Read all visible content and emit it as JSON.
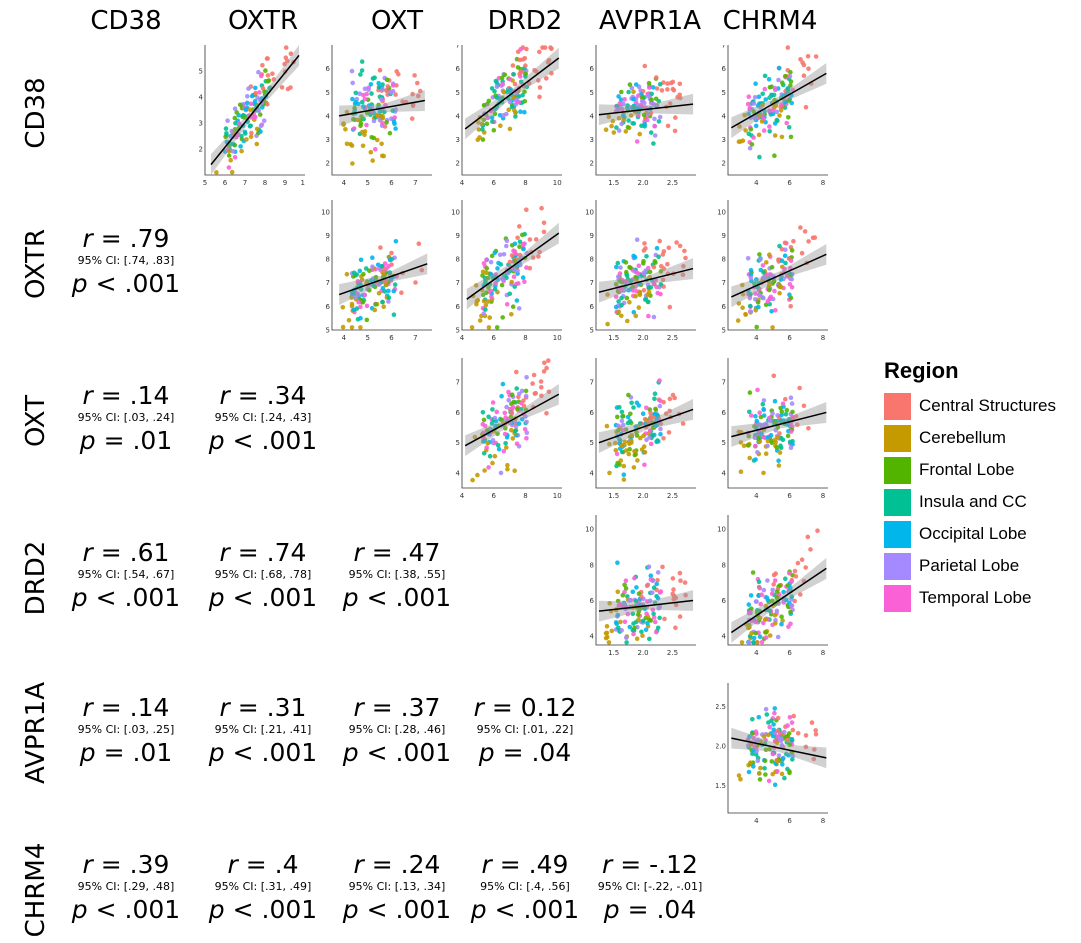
{
  "variables": [
    "CD38",
    "OXTR",
    "OXT",
    "DRD2",
    "AVPR1A",
    "CHRM4"
  ],
  "legend": {
    "title": "Region",
    "items": [
      {
        "label": "Central Structures",
        "color": "#F8766D"
      },
      {
        "label": "Cerebellum",
        "color": "#C49A00"
      },
      {
        "label": "Frontal Lobe",
        "color": "#53B400"
      },
      {
        "label": "Insula and CC",
        "color": "#00C094"
      },
      {
        "label": "Occipital Lobe",
        "color": "#00B6EB"
      },
      {
        "label": "Parietal Lobe",
        "color": "#A58AFF"
      },
      {
        "label": "Temporal Lobe",
        "color": "#FB61D7"
      }
    ]
  },
  "stats": [
    {
      "row": "OXTR",
      "col": "CD38",
      "r": ".79",
      "ci": "95% CI: [.74, .83]",
      "p": "< .001"
    },
    {
      "row": "OXT",
      "col": "CD38",
      "r": ".14",
      "ci": "95% CI: [.03, .24]",
      "p": "= .01"
    },
    {
      "row": "OXT",
      "col": "OXTR",
      "r": ".34",
      "ci": "95% CI: [.24, .43]",
      "p": "< .001"
    },
    {
      "row": "DRD2",
      "col": "CD38",
      "r": ".61",
      "ci": "95% CI: [.54, .67]",
      "p": "< .001"
    },
    {
      "row": "DRD2",
      "col": "OXTR",
      "r": ".74",
      "ci": "95% CI: [.68, .78]",
      "p": "< .001"
    },
    {
      "row": "DRD2",
      "col": "OXT",
      "r": ".47",
      "ci": "95% CI: [.38, .55]",
      "p": "< .001"
    },
    {
      "row": "AVPR1A",
      "col": "CD38",
      "r": ".14",
      "ci": "95% CI: [.03, .25]",
      "p": "= .01"
    },
    {
      "row": "AVPR1A",
      "col": "OXTR",
      "r": ".31",
      "ci": "95% CI: [.21, .41]",
      "p": "< .001"
    },
    {
      "row": "AVPR1A",
      "col": "OXT",
      "r": ".37",
      "ci": "95% CI: [.28, .46]",
      "p": "< .001"
    },
    {
      "row": "AVPR1A",
      "col": "DRD2",
      "r": "0.12",
      "ci": "95% CI: [.01, .22]",
      "p": "= .04"
    },
    {
      "row": "CHRM4",
      "col": "CD38",
      "r": ".39",
      "ci": "95% CI: [.29, .48]",
      "p": "< .001"
    },
    {
      "row": "CHRM4",
      "col": "OXTR",
      "r": ".4",
      "ci": "95% CI: [.31, .49]",
      "p": "< .001"
    },
    {
      "row": "CHRM4",
      "col": "OXT",
      "r": ".24",
      "ci": "95% CI: [.13, .34]",
      "p": "< .001"
    },
    {
      "row": "CHRM4",
      "col": "DRD2",
      "r": ".49",
      "ci": "95% CI: [.4, .56]",
      "p": "< .001"
    },
    {
      "row": "CHRM4",
      "col": "AVPR1A",
      "r": "-.12",
      "ci": "95% CI: [-.22, -.01]",
      "p": "= .04"
    }
  ],
  "chart_data": {
    "type": "scatter",
    "layout": "correlation-matrix",
    "panels": [
      {
        "row": "CD38",
        "col": "OXTR",
        "xlim": [
          5,
          10
        ],
        "ylim": [
          1,
          6
        ],
        "xticks": [
          "5",
          "6",
          "7",
          "8",
          "9",
          "10"
        ],
        "yticks": [
          "2",
          "3",
          "4",
          "5"
        ],
        "fit_line": [
          [
            5.3,
            1.4
          ],
          [
            9.7,
            5.6
          ]
        ]
      },
      {
        "row": "CD38",
        "col": "OXT",
        "xlim": [
          3.5,
          7.7
        ],
        "ylim": [
          1.5,
          7
        ],
        "xticks": [
          "4",
          "5",
          "6",
          "7"
        ],
        "yticks": [
          "2",
          "3",
          "4",
          "5",
          "6"
        ],
        "fit_line": [
          [
            3.8,
            4.0
          ],
          [
            7.4,
            4.65
          ]
        ]
      },
      {
        "row": "CD38",
        "col": "DRD2",
        "xlim": [
          4,
          10.3
        ],
        "ylim": [
          1.5,
          7
        ],
        "xticks": [
          "4",
          "6",
          "8",
          "10"
        ],
        "yticks": [
          "2",
          "3",
          "4",
          "5",
          "6",
          "7"
        ],
        "fit_line": [
          [
            4.2,
            3.45
          ],
          [
            10.1,
            6.45
          ]
        ]
      },
      {
        "row": "CD38",
        "col": "AVPR1A",
        "xlim": [
          1.2,
          2.9
        ],
        "ylim": [
          1.5,
          7
        ],
        "xticks": [
          "1.5",
          "2.0",
          "2.5"
        ],
        "yticks": [
          "2",
          "3",
          "4",
          "5",
          "6"
        ],
        "fit_line": [
          [
            1.25,
            4.05
          ],
          [
            2.85,
            4.5
          ]
        ]
      },
      {
        "row": "CD38",
        "col": "CHRM4",
        "xlim": [
          2.3,
          8.3
        ],
        "ylim": [
          1.5,
          7
        ],
        "xticks": [
          "4",
          "6",
          "8"
        ],
        "yticks": [
          "2",
          "3",
          "4",
          "5",
          "6",
          "7"
        ],
        "fit_line": [
          [
            2.5,
            3.5
          ],
          [
            8.2,
            5.8
          ]
        ]
      },
      {
        "row": "OXTR",
        "col": "OXT",
        "xlim": [
          3.5,
          7.7
        ],
        "ylim": [
          5,
          10.5
        ],
        "xticks": [
          "4",
          "5",
          "6",
          "7"
        ],
        "yticks": [
          "5",
          "6",
          "7",
          "8",
          "9",
          "10"
        ],
        "fit_line": [
          [
            3.8,
            6.5
          ],
          [
            7.5,
            7.8
          ]
        ]
      },
      {
        "row": "OXTR",
        "col": "DRD2",
        "xlim": [
          4,
          10.3
        ],
        "ylim": [
          5,
          10.5
        ],
        "xticks": [
          "4",
          "6",
          "8",
          "10"
        ],
        "yticks": [
          "5",
          "6",
          "7",
          "8",
          "9",
          "10"
        ],
        "fit_line": [
          [
            4.3,
            6.3
          ],
          [
            10.1,
            9.1
          ]
        ]
      },
      {
        "row": "OXTR",
        "col": "AVPR1A",
        "xlim": [
          1.2,
          2.9
        ],
        "ylim": [
          5,
          10.5
        ],
        "xticks": [
          "1.5",
          "2.0",
          "2.5"
        ],
        "yticks": [
          "5",
          "6",
          "7",
          "8",
          "9",
          "10"
        ],
        "fit_line": [
          [
            1.25,
            6.6
          ],
          [
            2.85,
            7.6
          ]
        ]
      },
      {
        "row": "OXTR",
        "col": "CHRM4",
        "xlim": [
          2.3,
          8.3
        ],
        "ylim": [
          5,
          10.5
        ],
        "xticks": [
          "4",
          "6",
          "8"
        ],
        "yticks": [
          "5",
          "6",
          "7",
          "8",
          "9",
          "10"
        ],
        "fit_line": [
          [
            2.5,
            6.4
          ],
          [
            8.2,
            8.2
          ]
        ]
      },
      {
        "row": "OXT",
        "col": "DRD2",
        "xlim": [
          4,
          10.3
        ],
        "ylim": [
          3.5,
          7.8
        ],
        "xticks": [
          "4",
          "6",
          "8",
          "10"
        ],
        "yticks": [
          "4",
          "5",
          "6",
          "7"
        ],
        "fit_line": [
          [
            4.2,
            4.9
          ],
          [
            10.1,
            6.6
          ]
        ]
      },
      {
        "row": "OXT",
        "col": "AVPR1A",
        "xlim": [
          1.2,
          2.9
        ],
        "ylim": [
          3.5,
          7.8
        ],
        "xticks": [
          "1.5",
          "2.0",
          "2.5"
        ],
        "yticks": [
          "4",
          "5",
          "6",
          "7"
        ],
        "fit_line": [
          [
            1.25,
            5.0
          ],
          [
            2.85,
            6.1
          ]
        ]
      },
      {
        "row": "OXT",
        "col": "CHRM4",
        "xlim": [
          2.3,
          8.3
        ],
        "ylim": [
          3.5,
          7.8
        ],
        "xticks": [
          "4",
          "6",
          "8"
        ],
        "yticks": [
          "4",
          "5",
          "6",
          "7"
        ],
        "fit_line": [
          [
            2.5,
            5.2
          ],
          [
            8.2,
            6.0
          ]
        ]
      },
      {
        "row": "DRD2",
        "col": "AVPR1A",
        "xlim": [
          1.2,
          2.9
        ],
        "ylim": [
          3.5,
          10.8
        ],
        "xticks": [
          "1.5",
          "2.0",
          "2.5"
        ],
        "yticks": [
          "4",
          "6",
          "8",
          "10"
        ],
        "fit_line": [
          [
            1.25,
            5.4
          ],
          [
            2.85,
            6.0
          ]
        ]
      },
      {
        "row": "DRD2",
        "col": "CHRM4",
        "xlim": [
          2.3,
          8.3
        ],
        "ylim": [
          3.5,
          10.8
        ],
        "xticks": [
          "4",
          "6",
          "8"
        ],
        "yticks": [
          "4",
          "6",
          "8",
          "10"
        ],
        "fit_line": [
          [
            2.5,
            4.2
          ],
          [
            8.2,
            7.8
          ]
        ]
      },
      {
        "row": "AVPR1A",
        "col": "CHRM4",
        "xlim": [
          2.3,
          8.3
        ],
        "ylim": [
          1.15,
          2.8
        ],
        "xticks": [
          "4",
          "6",
          "8"
        ],
        "yticks": [
          "1.5",
          "2.0",
          "2.5"
        ],
        "fit_line": [
          [
            2.5,
            2.1
          ],
          [
            8.2,
            1.85
          ]
        ]
      }
    ]
  }
}
